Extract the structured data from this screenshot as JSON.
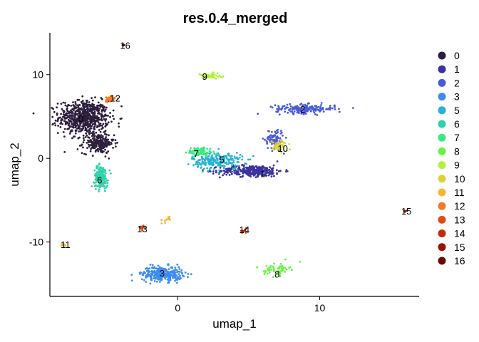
{
  "chart_data": {
    "type": "scatter",
    "title": "res.0.4_merged",
    "xlabel": "umap_1",
    "ylabel": "umap_2",
    "xlim": [
      -9,
      17
    ],
    "ylim": [
      -16.5,
      15
    ],
    "x_ticks": [
      0,
      10
    ],
    "y_ticks": [
      10,
      0,
      -10
    ],
    "x_tick_labels": [
      "0",
      "10"
    ],
    "y_tick_labels": [
      "10",
      "0",
      "-10"
    ],
    "grid": false,
    "legend_position": "right",
    "clusters": [
      {
        "name": "0",
        "color": "#2d1e3e",
        "label_x": -6.8,
        "label_y": 4.8,
        "blobs": [
          {
            "x": -6.6,
            "y": 4.9,
            "rx": 1.6,
            "ry": 1.8,
            "n": 650
          },
          {
            "x": -5.6,
            "y": 1.8,
            "rx": 1.0,
            "ry": 1.1,
            "n": 220
          }
        ]
      },
      {
        "name": "1",
        "color": "#3b32a0",
        "label_x": 6.0,
        "label_y": -1.8,
        "blobs": [
          {
            "x": 5.2,
            "y": -1.5,
            "rx": 2.0,
            "ry": 0.6,
            "n": 330
          }
        ]
      },
      {
        "name": "2",
        "color": "#4a5bd8",
        "label_x": 8.8,
        "label_y": 5.9,
        "blobs": [
          {
            "x": 9.0,
            "y": 5.9,
            "rx": 1.9,
            "ry": 0.5,
            "n": 190
          },
          {
            "x": 6.8,
            "y": 2.3,
            "rx": 0.6,
            "ry": 1.1,
            "n": 100
          }
        ]
      },
      {
        "name": "3",
        "color": "#3d8cf0",
        "label_x": -1.1,
        "label_y": -13.7,
        "blobs": [
          {
            "x": -1.1,
            "y": -13.8,
            "rx": 1.3,
            "ry": 0.8,
            "n": 290
          }
        ]
      },
      {
        "name": "5",
        "color": "#28b2d6",
        "label_x": 3.1,
        "label_y": -0.1,
        "blobs": [
          {
            "x": 2.8,
            "y": -0.3,
            "rx": 1.6,
            "ry": 0.9,
            "n": 230
          }
        ]
      },
      {
        "name": "6",
        "color": "#2fd2a8",
        "label_x": -5.5,
        "label_y": -2.6,
        "blobs": [
          {
            "x": -5.4,
            "y": -2.2,
            "rx": 0.45,
            "ry": 1.2,
            "n": 170
          }
        ]
      },
      {
        "name": "7",
        "color": "#3ee87e",
        "label_x": 1.3,
        "label_y": 0.6,
        "blobs": [
          {
            "x": 1.6,
            "y": 0.8,
            "rx": 0.8,
            "ry": 0.5,
            "n": 90
          }
        ]
      },
      {
        "name": "8",
        "color": "#69f246",
        "label_x": 7.0,
        "label_y": -13.8,
        "blobs": [
          {
            "x": 7.0,
            "y": -13.2,
            "rx": 0.8,
            "ry": 0.7,
            "n": 60
          }
        ]
      },
      {
        "name": "9",
        "color": "#b2f23a",
        "label_x": 1.9,
        "label_y": 9.8,
        "blobs": [
          {
            "x": 2.2,
            "y": 9.8,
            "rx": 0.8,
            "ry": 0.3,
            "n": 60
          }
        ]
      },
      {
        "name": "10",
        "color": "#dcd33c",
        "label_x": 7.4,
        "label_y": 1.2,
        "blobs": [
          {
            "x": 7.2,
            "y": 1.5,
            "rx": 0.5,
            "ry": 0.6,
            "n": 60
          }
        ]
      },
      {
        "name": "11",
        "color": "#f5b536",
        "label_x": -7.9,
        "label_y": -10.3,
        "blobs": [
          {
            "x": -8.0,
            "y": -10.4,
            "rx": 0.15,
            "ry": 0.12,
            "n": 12
          },
          {
            "x": -0.8,
            "y": -7.4,
            "rx": 0.2,
            "ry": 0.4,
            "n": 12
          }
        ]
      },
      {
        "name": "12",
        "color": "#f27a24",
        "label_x": -4.4,
        "label_y": 7.2,
        "blobs": [
          {
            "x": -4.8,
            "y": 7.1,
            "rx": 0.35,
            "ry": 0.35,
            "n": 35
          }
        ]
      },
      {
        "name": "13",
        "color": "#e04a14",
        "label_x": -2.5,
        "label_y": -8.4,
        "blobs": [
          {
            "x": -2.5,
            "y": -8.3,
            "rx": 0.22,
            "ry": 0.22,
            "n": 18
          }
        ]
      },
      {
        "name": "14",
        "color": "#c42a0a",
        "label_x": 4.7,
        "label_y": -8.5,
        "blobs": [
          {
            "x": 4.7,
            "y": -8.6,
            "rx": 0.3,
            "ry": 0.3,
            "n": 10
          }
        ]
      },
      {
        "name": "15",
        "color": "#9e1004",
        "label_x": 16.1,
        "label_y": -6.3,
        "blobs": [
          {
            "x": 16.0,
            "y": -6.3,
            "rx": 0.12,
            "ry": 0.12,
            "n": 8
          }
        ]
      },
      {
        "name": "16",
        "color": "#6a0a06",
        "label_x": -3.7,
        "label_y": 13.5,
        "blobs": [
          {
            "x": -3.8,
            "y": 13.5,
            "rx": 0.12,
            "ry": 0.12,
            "n": 6
          }
        ]
      }
    ]
  }
}
